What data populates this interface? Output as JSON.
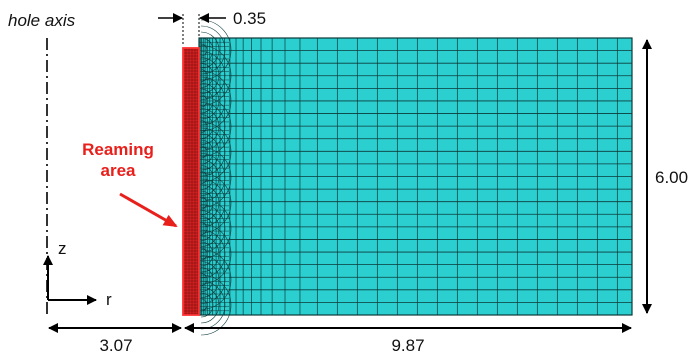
{
  "labels": {
    "hole_axis": "hole axis",
    "reaming_line1": "Reaming",
    "reaming_line2": "area",
    "axis_z": "z",
    "axis_r": "r"
  },
  "dimensions": {
    "reaming_width": "0.35",
    "hole_radius": "3.07",
    "workpiece_width": "9.87",
    "workpiece_height": "6.00"
  },
  "colors": {
    "mesh_fill": "#2ccfd0",
    "mesh_line": "#0b3a3a",
    "reaming_fill": "#d42020",
    "reaming_edge": "#ff3333",
    "callout": "#e8201c",
    "dimension": "#000000"
  },
  "icons": {
    "callout_arrow": "arrow-icon",
    "coordinate_axes": "axes-icon"
  }
}
